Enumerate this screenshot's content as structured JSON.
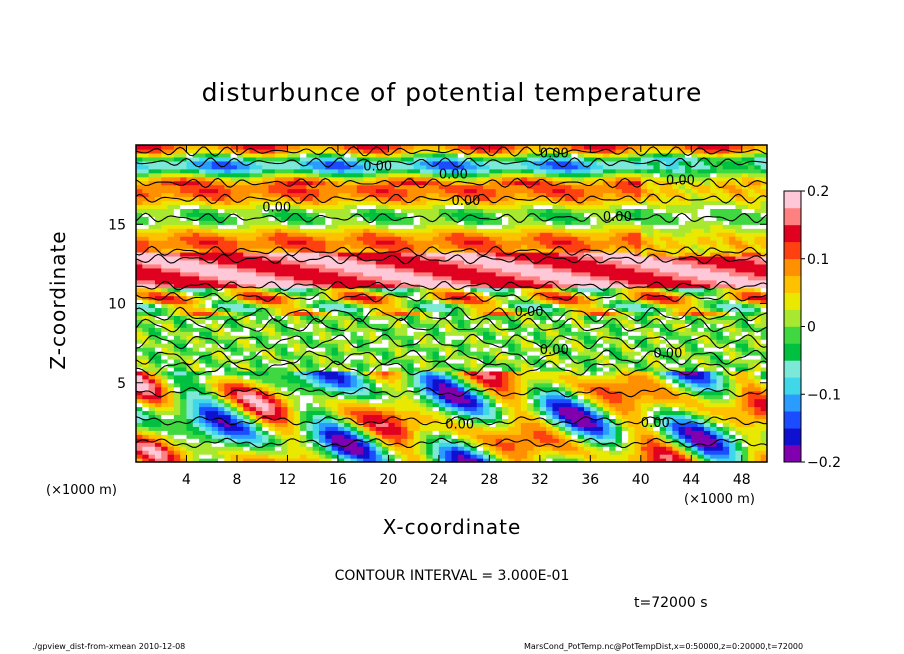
{
  "chart_data": {
    "type": "heatmap",
    "title": "disturbunce of potential temperature",
    "xlabel": "X-coordinate",
    "ylabel": "Z-coordinate",
    "x_unit_label": "(×1000 m)",
    "x_unit_label_right": "(×1000 m)",
    "xlim": [
      0,
      50
    ],
    "ylim": [
      0,
      20
    ],
    "x_ticks": [
      4,
      8,
      12,
      16,
      20,
      24,
      28,
      32,
      36,
      40,
      44,
      48
    ],
    "y_ticks": [
      5,
      10,
      15
    ],
    "colorbar": {
      "range": [
        -0.2,
        0.2
      ],
      "tick_labels": [
        "0.2",
        "0.1",
        "0",
        "−0.1",
        "−0.2"
      ],
      "tick_values": [
        0.2,
        0.1,
        0,
        -0.1,
        -0.2
      ],
      "colors": [
        "#8000b0",
        "#1010d0",
        "#1c4cff",
        "#2a9cff",
        "#40d8e8",
        "#7ce8d8",
        "#00c040",
        "#40d840",
        "#a8e830",
        "#e8e800",
        "#ffc000",
        "#ff9000",
        "#ff4010",
        "#e00020",
        "#ff8080",
        "#ffc8d8"
      ]
    },
    "contour_interval": "CONTOUR INTERVAL = 3.000E-01",
    "contour_labels": [
      {
        "text": "0.00",
        "x": 18,
        "z": 18.4
      },
      {
        "text": "0.00",
        "x": 24,
        "z": 17.9
      },
      {
        "text": "0.00",
        "x": 32,
        "z": 19.2
      },
      {
        "text": "0.00",
        "x": 42,
        "z": 17.5
      },
      {
        "text": "0.00",
        "x": 10,
        "z": 15.8
      },
      {
        "text": "0.00",
        "x": 25,
        "z": 16.2
      },
      {
        "text": "0.00",
        "x": 37,
        "z": 15.2
      },
      {
        "text": "0.00",
        "x": 30,
        "z": 9.2
      },
      {
        "text": "0.00",
        "x": 32,
        "z": 6.8
      },
      {
        "text": "0.00",
        "x": 41,
        "z": 6.6
      },
      {
        "text": "0.00",
        "x": 24.5,
        "z": 2.1
      },
      {
        "text": "0.00",
        "x": 40,
        "z": 2.2
      }
    ]
  },
  "annotations": {
    "time": "t=72000 s",
    "footer_left": "./gpview_dist-from-xmean  2010-12-08",
    "footer_right": "MarsCond_PotTemp.nc@PotTempDist,x=0:50000,z=0:20000,t=72000"
  }
}
